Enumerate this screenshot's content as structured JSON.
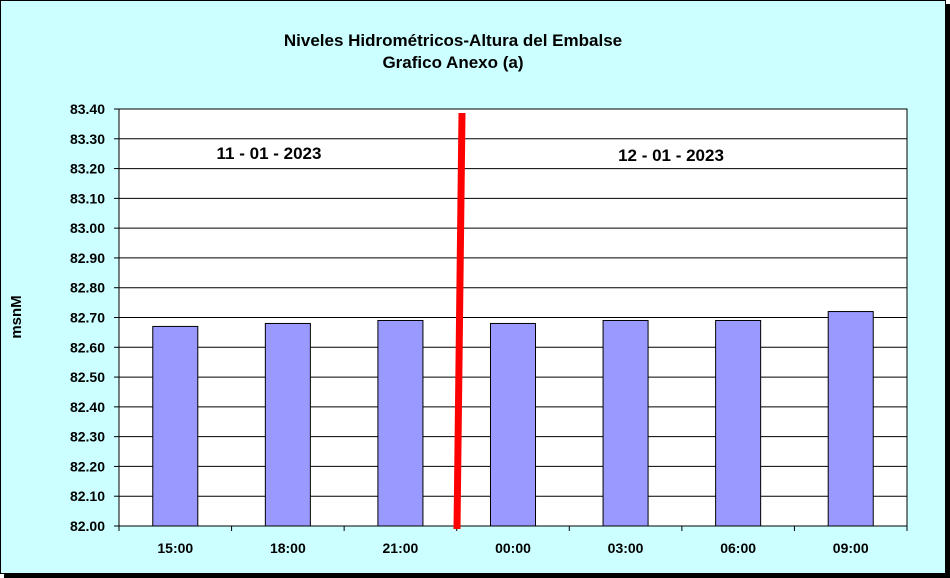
{
  "chart_data": {
    "type": "bar",
    "title": "Niveles Hidrométricos-Altura del Embalse",
    "subtitle": "Grafico Anexo (a)",
    "ylabel": "msnM",
    "xlabel": "",
    "categories": [
      "15:00",
      "18:00",
      "21:00",
      "00:00",
      "03:00",
      "06:00",
      "09:00"
    ],
    "values": [
      82.67,
      82.68,
      82.69,
      82.68,
      82.69,
      82.69,
      82.72
    ],
    "ylim": [
      82.0,
      83.4
    ],
    "yticks": [
      "82.00",
      "82.10",
      "82.20",
      "82.30",
      "82.40",
      "82.50",
      "82.60",
      "82.70",
      "82.80",
      "82.90",
      "83.00",
      "83.10",
      "83.20",
      "83.30",
      "83.40"
    ],
    "grid": true,
    "annotations": [
      "11 - 01 - 2023",
      "12 - 01 - 2023"
    ],
    "colors": {
      "background": "#ccffff",
      "plot_area": "#ffffff",
      "bar": "#9999ff",
      "divider": "#ff0000"
    }
  }
}
